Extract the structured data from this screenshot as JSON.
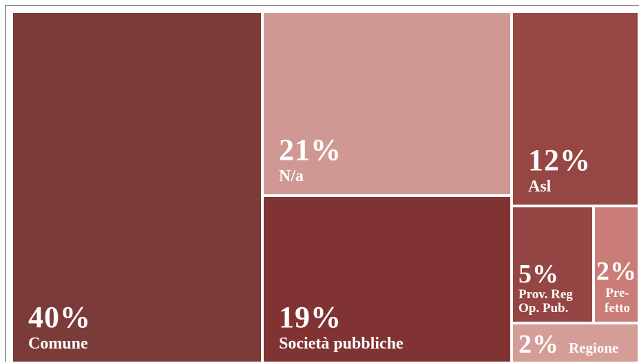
{
  "chart_data": {
    "type": "treemap",
    "items": [
      {
        "id": "comune",
        "percent_label": "40%",
        "name": "Comune",
        "value": 40,
        "color": "#7b3b38"
      },
      {
        "id": "na",
        "percent_label": "21%",
        "name": "N/a",
        "value": 21,
        "color": "#d09893"
      },
      {
        "id": "societa",
        "percent_label": "19%",
        "name": "Società pubbliche",
        "value": 19,
        "color": "#813334"
      },
      {
        "id": "asl",
        "percent_label": "12%",
        "name": "Asl",
        "value": 12,
        "color": "#964643"
      },
      {
        "id": "prov",
        "percent_label": "5%",
        "name_lines": [
          "Prov. Reg",
          "Op. Pub."
        ],
        "value": 5,
        "color": "#954543"
      },
      {
        "id": "pref",
        "percent_label": "2%",
        "name_lines": [
          "Pre-",
          "fetto"
        ],
        "value": 2,
        "color": "#ca7d78"
      },
      {
        "id": "regione",
        "percent_label": "2%",
        "name": "Regione",
        "value": 2,
        "color": "#d59d98"
      }
    ]
  }
}
